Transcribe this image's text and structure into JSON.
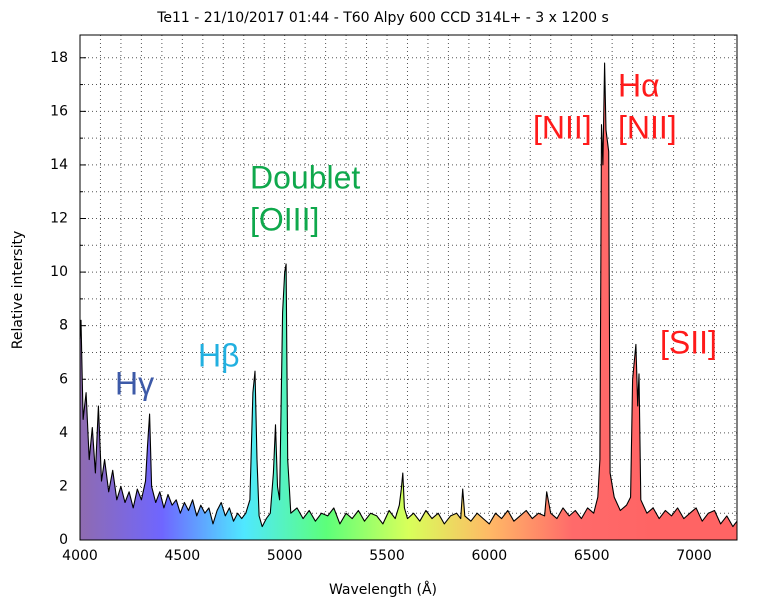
{
  "chart_data": {
    "type": "area-line",
    "title": "Te11 - 21/10/2017 01:44 - T60 Alpy 600 CCD 314L+ - 3 x 1200 s",
    "x_label": "Wavelength (Å)",
    "y_label": "Relative intersity",
    "xlim": [
      4000,
      7210
    ],
    "ylim": [
      0,
      18.85
    ],
    "xticks": [
      4000,
      4500,
      5000,
      5500,
      6000,
      6500,
      7000
    ],
    "yticks": [
      0,
      2,
      4,
      6,
      8,
      10,
      12,
      14,
      16,
      18
    ],
    "xminorticks": [
      4100,
      4200,
      4300,
      4400,
      4600,
      4700,
      4800,
      4900,
      5100,
      5200,
      5300,
      5400,
      5600,
      5700,
      5800,
      5900,
      6100,
      6200,
      6300,
      6400,
      6600,
      6700,
      6800,
      6900,
      7100,
      7200
    ],
    "yminorticks": [
      1,
      3,
      5,
      7,
      9,
      11,
      13,
      15,
      17
    ],
    "grid": true,
    "line_color": "#000000",
    "fill_colors": [
      "#8f6bb0",
      "#6f66ff",
      "#4fe8ff",
      "#5cff7a",
      "#d8ff5a",
      "#ffb866",
      "#ff6a6a",
      "#ff6464",
      "#ff6464"
    ],
    "series": [
      {
        "x": [
          4000,
          4005,
          4015,
          4030,
          4045,
          4060,
          4075,
          4090,
          4105,
          4120,
          4140,
          4160,
          4180,
          4200,
          4220,
          4240,
          4260,
          4280,
          4300,
          4320,
          4330,
          4340,
          4350,
          4370,
          4390,
          4410,
          4430,
          4450,
          4470,
          4490,
          4510,
          4530,
          4550,
          4570,
          4590,
          4610,
          4630,
          4650,
          4670,
          4690,
          4710,
          4730,
          4750,
          4770,
          4790,
          4810,
          4830,
          4845,
          4855,
          4865,
          4875,
          4890,
          4910,
          4930,
          4945,
          4955,
          4965,
          4975,
          4990,
          5000,
          5007,
          5015,
          5030,
          5060,
          5090,
          5120,
          5150,
          5180,
          5210,
          5240,
          5270,
          5300,
          5330,
          5360,
          5390,
          5420,
          5450,
          5480,
          5510,
          5540,
          5560,
          5570,
          5577,
          5585,
          5600,
          5630,
          5660,
          5690,
          5720,
          5750,
          5780,
          5810,
          5840,
          5860,
          5870,
          5880,
          5910,
          5940,
          5970,
          6000,
          6030,
          6060,
          6090,
          6120,
          6150,
          6180,
          6210,
          6240,
          6270,
          6280,
          6300,
          6330,
          6360,
          6390,
          6420,
          6450,
          6480,
          6510,
          6530,
          6540,
          6548,
          6555,
          6563,
          6570,
          6583,
          6590,
          6610,
          6640,
          6670,
          6690,
          6700,
          6716,
          6725,
          6731,
          6740,
          6770,
          6800,
          6830,
          6860,
          6890,
          6920,
          6950,
          6980,
          7010,
          7040,
          7070,
          7100,
          7130,
          7160,
          7190,
          7210
        ],
        "values": [
          7.5,
          8.2,
          4.5,
          5.5,
          3.0,
          4.2,
          2.5,
          5.0,
          2.2,
          3.0,
          1.8,
          2.6,
          1.5,
          2.0,
          1.4,
          1.8,
          1.2,
          1.9,
          1.5,
          2.2,
          3.5,
          4.7,
          2.0,
          1.4,
          1.8,
          1.2,
          1.7,
          1.3,
          1.5,
          1.0,
          1.4,
          1.1,
          1.5,
          0.9,
          1.3,
          1.0,
          1.2,
          0.6,
          1.1,
          1.4,
          0.9,
          1.2,
          0.7,
          1.0,
          0.8,
          1.0,
          1.5,
          5.5,
          6.3,
          3.0,
          0.9,
          0.5,
          0.8,
          1.0,
          2.5,
          4.3,
          2.0,
          1.5,
          8.5,
          10.0,
          10.3,
          3.0,
          1.0,
          1.2,
          0.8,
          1.1,
          0.7,
          1.0,
          0.9,
          1.2,
          0.6,
          1.0,
          0.8,
          1.1,
          0.7,
          1.0,
          0.9,
          0.6,
          1.1,
          0.8,
          1.3,
          1.9,
          2.5,
          1.2,
          0.8,
          1.0,
          0.7,
          1.1,
          0.8,
          1.0,
          0.6,
          0.9,
          1.0,
          0.8,
          1.9,
          0.9,
          0.7,
          1.0,
          0.8,
          0.6,
          1.0,
          0.8,
          1.1,
          0.7,
          0.9,
          1.1,
          0.8,
          1.0,
          0.9,
          1.8,
          1.0,
          0.8,
          1.2,
          0.9,
          1.1,
          0.8,
          1.2,
          1.0,
          1.6,
          3.0,
          15.5,
          14.0,
          17.8,
          15.3,
          14.5,
          2.5,
          1.6,
          1.1,
          1.3,
          1.6,
          6.0,
          7.3,
          5.0,
          6.2,
          1.5,
          1.0,
          1.2,
          0.8,
          1.1,
          0.9,
          1.2,
          0.8,
          1.0,
          1.2,
          0.7,
          1.0,
          1.1,
          0.6,
          0.9,
          0.5,
          0.7
        ]
      }
    ],
    "annotations": [
      {
        "text": "Hγ",
        "color": "#3d5aa8"
      },
      {
        "text": "Hβ",
        "color": "#22b0e0"
      },
      {
        "text": "Doublet",
        "color": "#0fa84c"
      },
      {
        "text": "[OIII]",
        "color": "#0fa84c"
      },
      {
        "text": "Hα",
        "color": "#ff1a1a"
      },
      {
        "text": "[NII]",
        "color": "#ff1a1a"
      },
      {
        "text": "[NII]",
        "color": "#ff1a1a"
      },
      {
        "text": "[SII]",
        "color": "#ff1a1a"
      }
    ]
  }
}
